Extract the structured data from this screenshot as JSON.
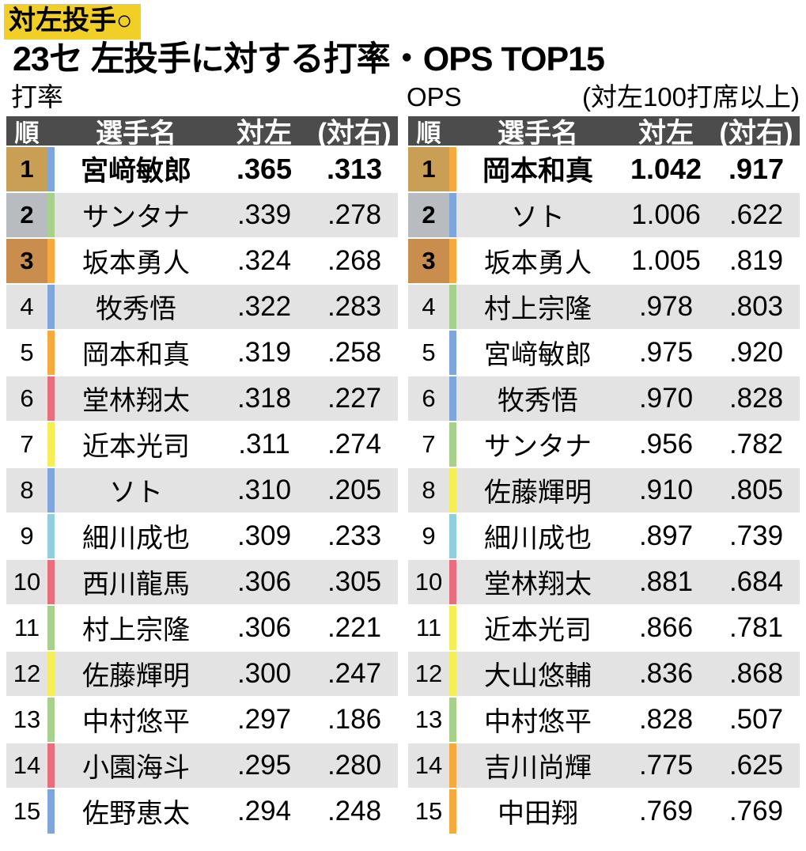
{
  "page": {
    "tag": "対左投手○",
    "title": "23セ 左投手に対する打率・OPS TOP15"
  },
  "chart_data": [
    {
      "type": "table",
      "title": "打率",
      "note": "",
      "columns": [
        "順",
        "選手名",
        "対左",
        "(対右)"
      ],
      "rows": [
        {
          "rank": "1",
          "name": "宮﨑敏郎",
          "team_color": "#7da7dc",
          "vs_left": ".365",
          "vs_right": ".313"
        },
        {
          "rank": "2",
          "name": "サンタナ",
          "team_color": "#a8d08d",
          "vs_left": ".339",
          "vs_right": ".278"
        },
        {
          "rank": "3",
          "name": "坂本勇人",
          "team_color": "#f6aa3e",
          "vs_left": ".324",
          "vs_right": ".268"
        },
        {
          "rank": "4",
          "name": "牧秀悟",
          "team_color": "#7da7dc",
          "vs_left": ".322",
          "vs_right": ".283"
        },
        {
          "rank": "5",
          "name": "岡本和真",
          "team_color": "#f6aa3e",
          "vs_left": ".319",
          "vs_right": ".258"
        },
        {
          "rank": "6",
          "name": "堂林翔太",
          "team_color": "#ea6d7e",
          "vs_left": ".318",
          "vs_right": ".227"
        },
        {
          "rank": "7",
          "name": "近本光司",
          "team_color": "#f5ee55",
          "vs_left": ".311",
          "vs_right": ".274"
        },
        {
          "rank": "8",
          "name": "ソト",
          "team_color": "#7da7dc",
          "vs_left": ".310",
          "vs_right": ".205"
        },
        {
          "rank": "9",
          "name": "細川成也",
          "team_color": "#92cfdd",
          "vs_left": ".309",
          "vs_right": ".233"
        },
        {
          "rank": "10",
          "name": "西川龍馬",
          "team_color": "#ea6d7e",
          "vs_left": ".306",
          "vs_right": ".305"
        },
        {
          "rank": "11",
          "name": "村上宗隆",
          "team_color": "#a8d08d",
          "vs_left": ".306",
          "vs_right": ".221"
        },
        {
          "rank": "12",
          "name": "佐藤輝明",
          "team_color": "#f5ee55",
          "vs_left": ".300",
          "vs_right": ".247"
        },
        {
          "rank": "13",
          "name": "中村悠平",
          "team_color": "#a8d08d",
          "vs_left": ".297",
          "vs_right": ".186"
        },
        {
          "rank": "14",
          "name": "小園海斗",
          "team_color": "#ea6d7e",
          "vs_left": ".295",
          "vs_right": ".280"
        },
        {
          "rank": "15",
          "name": "佐野恵太",
          "team_color": "#7da7dc",
          "vs_left": ".294",
          "vs_right": ".248"
        }
      ]
    },
    {
      "type": "table",
      "title": "OPS",
      "note": "(対左100打席以上)",
      "columns": [
        "順",
        "選手名",
        "対左",
        "(対右)"
      ],
      "rows": [
        {
          "rank": "1",
          "name": "岡本和真",
          "team_color": "#f6aa3e",
          "vs_left": "1.042",
          "vs_right": ".917"
        },
        {
          "rank": "2",
          "name": "ソト",
          "team_color": "#7da7dc",
          "vs_left": "1.006",
          "vs_right": ".622"
        },
        {
          "rank": "3",
          "name": "坂本勇人",
          "team_color": "#f6aa3e",
          "vs_left": "1.005",
          "vs_right": ".819"
        },
        {
          "rank": "4",
          "name": "村上宗隆",
          "team_color": "#a8d08d",
          "vs_left": ".978",
          "vs_right": ".803"
        },
        {
          "rank": "5",
          "name": "宮﨑敏郎",
          "team_color": "#7da7dc",
          "vs_left": ".975",
          "vs_right": ".920"
        },
        {
          "rank": "6",
          "name": "牧秀悟",
          "team_color": "#7da7dc",
          "vs_left": ".970",
          "vs_right": ".828"
        },
        {
          "rank": "7",
          "name": "サンタナ",
          "team_color": "#a8d08d",
          "vs_left": ".956",
          "vs_right": ".782"
        },
        {
          "rank": "8",
          "name": "佐藤輝明",
          "team_color": "#f5ee55",
          "vs_left": ".910",
          "vs_right": ".805"
        },
        {
          "rank": "9",
          "name": "細川成也",
          "team_color": "#92cfdd",
          "vs_left": ".897",
          "vs_right": ".739"
        },
        {
          "rank": "10",
          "name": "堂林翔太",
          "team_color": "#ea6d7e",
          "vs_left": ".881",
          "vs_right": ".684"
        },
        {
          "rank": "11",
          "name": "近本光司",
          "team_color": "#f5ee55",
          "vs_left": ".866",
          "vs_right": ".781"
        },
        {
          "rank": "12",
          "name": "大山悠輔",
          "team_color": "#f5ee55",
          "vs_left": ".836",
          "vs_right": ".868"
        },
        {
          "rank": "13",
          "name": "中村悠平",
          "team_color": "#a8d08d",
          "vs_left": ".828",
          "vs_right": ".507"
        },
        {
          "rank": "14",
          "name": "吉川尚輝",
          "team_color": "#f6aa3e",
          "vs_left": ".775",
          "vs_right": ".625"
        },
        {
          "rank": "15",
          "name": "中田翔",
          "team_color": "#f6aa3e",
          "vs_left": ".769",
          "vs_right": ".769"
        }
      ]
    }
  ],
  "palette": {
    "highlight_yellow": "#f1cf26",
    "header_bg": "#4c4c4c",
    "row_alt": "#e3e3e3",
    "rank_gold": "#c99f56",
    "rank_silver": "#b8bcc0",
    "rank_bronze": "#c98d4e",
    "team_blue": "#7da7dc",
    "team_orange": "#f6aa3e",
    "team_yellow": "#f5ee55",
    "team_red": "#ea6d7e",
    "team_green": "#a8d08d",
    "team_cyan": "#92cfdd"
  }
}
